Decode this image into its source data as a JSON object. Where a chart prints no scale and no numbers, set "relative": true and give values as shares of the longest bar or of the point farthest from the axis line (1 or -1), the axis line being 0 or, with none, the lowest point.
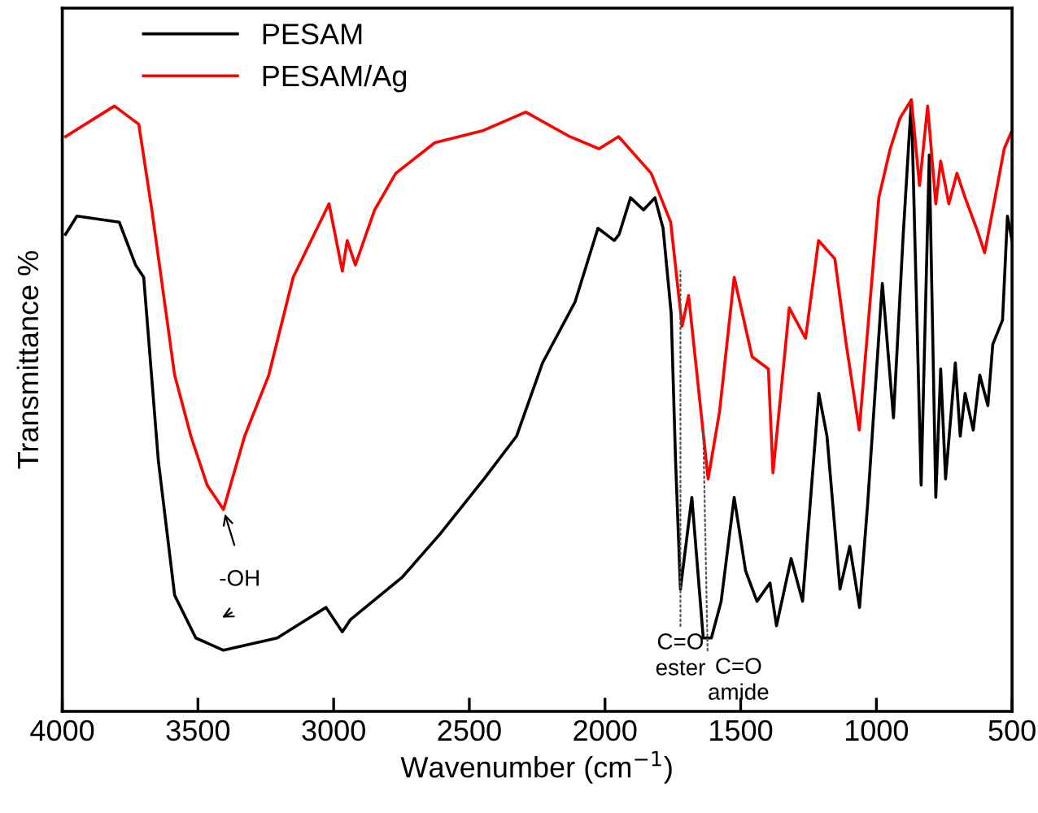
{
  "chart_data": {
    "type": "line",
    "relative": true,
    "xlabel": "Wavenumber (cm$^{−1}$)",
    "ylabel": "Transmittance %",
    "xlim": [
      4000,
      500
    ],
    "xticks": [
      4000,
      3500,
      3000,
      2500,
      2000,
      1500,
      1000,
      500
    ],
    "tick_labels": "x",
    "legend": "top left",
    "grid": false,
    "line_style": "solid",
    "marker": "none",
    "series": [
      {
        "name": "PESAM",
        "color": "#000000",
        "x": [
          3988,
          3946,
          3790,
          3730,
          3700,
          3646,
          3586,
          3508,
          3406,
          3208,
          3028,
          2968,
          2938,
          2746,
          2608,
          2446,
          2326,
          2230,
          2110,
          2026,
          1966,
          1948,
          1906,
          1858,
          1816,
          1786,
          1756,
          1740,
          1722,
          1680,
          1638,
          1608,
          1572,
          1524,
          1482,
          1440,
          1392,
          1368,
          1314,
          1272,
          1212,
          1182,
          1134,
          1098,
          1062,
          1032,
          978,
          937,
          901,
          871,
          835,
          805,
          781,
          763,
          745,
          709,
          691,
          673,
          643,
          619,
          589,
          571,
          535,
          517,
          500
        ],
        "values": [
          0.78,
          0.81,
          0.8,
          0.73,
          0.71,
          0.41,
          0.19,
          0.12,
          0.1,
          0.12,
          0.17,
          0.13,
          0.15,
          0.22,
          0.29,
          0.38,
          0.45,
          0.57,
          0.67,
          0.79,
          0.77,
          0.78,
          0.84,
          0.82,
          0.84,
          0.79,
          0.65,
          0.41,
          0.2,
          0.35,
          0.12,
          0.12,
          0.18,
          0.35,
          0.23,
          0.18,
          0.21,
          0.14,
          0.25,
          0.18,
          0.52,
          0.45,
          0.2,
          0.27,
          0.17,
          0.34,
          0.7,
          0.48,
          0.78,
          1.0,
          0.37,
          0.91,
          0.35,
          0.56,
          0.38,
          0.57,
          0.45,
          0.52,
          0.46,
          0.55,
          0.5,
          0.6,
          0.64,
          0.81,
          0.77
        ]
      },
      {
        "name": "PESAM/Ag",
        "color": "#ff0000",
        "x": [
          3988,
          3808,
          3718,
          3670,
          3586,
          3526,
          3466,
          3406,
          3328,
          3239,
          3149,
          3017,
          2968,
          2950,
          2920,
          2849,
          2771,
          2627,
          2448,
          2292,
          2130,
          2022,
          1950,
          1830,
          1758,
          1716,
          1692,
          1620,
          1578,
          1524,
          1458,
          1398,
          1381,
          1321,
          1261,
          1213,
          1153,
          1111,
          1063,
          991,
          949,
          913,
          871,
          841,
          811,
          781,
          763,
          733,
          703,
          673,
          631,
          601,
          571,
          529,
          500
        ],
        "values": [
          0.94,
          0.99,
          0.96,
          0.82,
          0.55,
          0.45,
          0.37,
          0.33,
          0.45,
          0.55,
          0.71,
          0.83,
          0.72,
          0.77,
          0.73,
          0.82,
          0.88,
          0.93,
          0.95,
          0.98,
          0.94,
          0.92,
          0.94,
          0.88,
          0.8,
          0.63,
          0.68,
          0.38,
          0.49,
          0.71,
          0.58,
          0.56,
          0.39,
          0.66,
          0.61,
          0.77,
          0.74,
          0.6,
          0.46,
          0.84,
          0.92,
          0.97,
          1.0,
          0.86,
          0.99,
          0.83,
          0.9,
          0.83,
          0.88,
          0.84,
          0.79,
          0.75,
          0.82,
          0.92,
          0.95
        ]
      }
    ],
    "annotations": [
      {
        "text": "-OH",
        "x": 3406,
        "y": 0.33
      },
      {
        "text": "C=O\nester",
        "x": 1722,
        "y": 0.72
      },
      {
        "text": "C=O\namide",
        "x": 1638,
        "y": 0.46
      }
    ]
  }
}
